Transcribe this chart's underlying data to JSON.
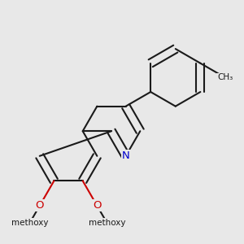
{
  "bg_color": "#e8e8e8",
  "bond_color": "#1a1a1a",
  "n_color": "#0000cc",
  "o_color": "#cc0000",
  "bond_width": 1.5,
  "dbo": 0.055,
  "figsize": [
    3.0,
    3.0
  ],
  "dpi": 100,
  "xlim": [
    -0.1,
    3.1
  ],
  "ylim": [
    -0.1,
    3.1
  ]
}
